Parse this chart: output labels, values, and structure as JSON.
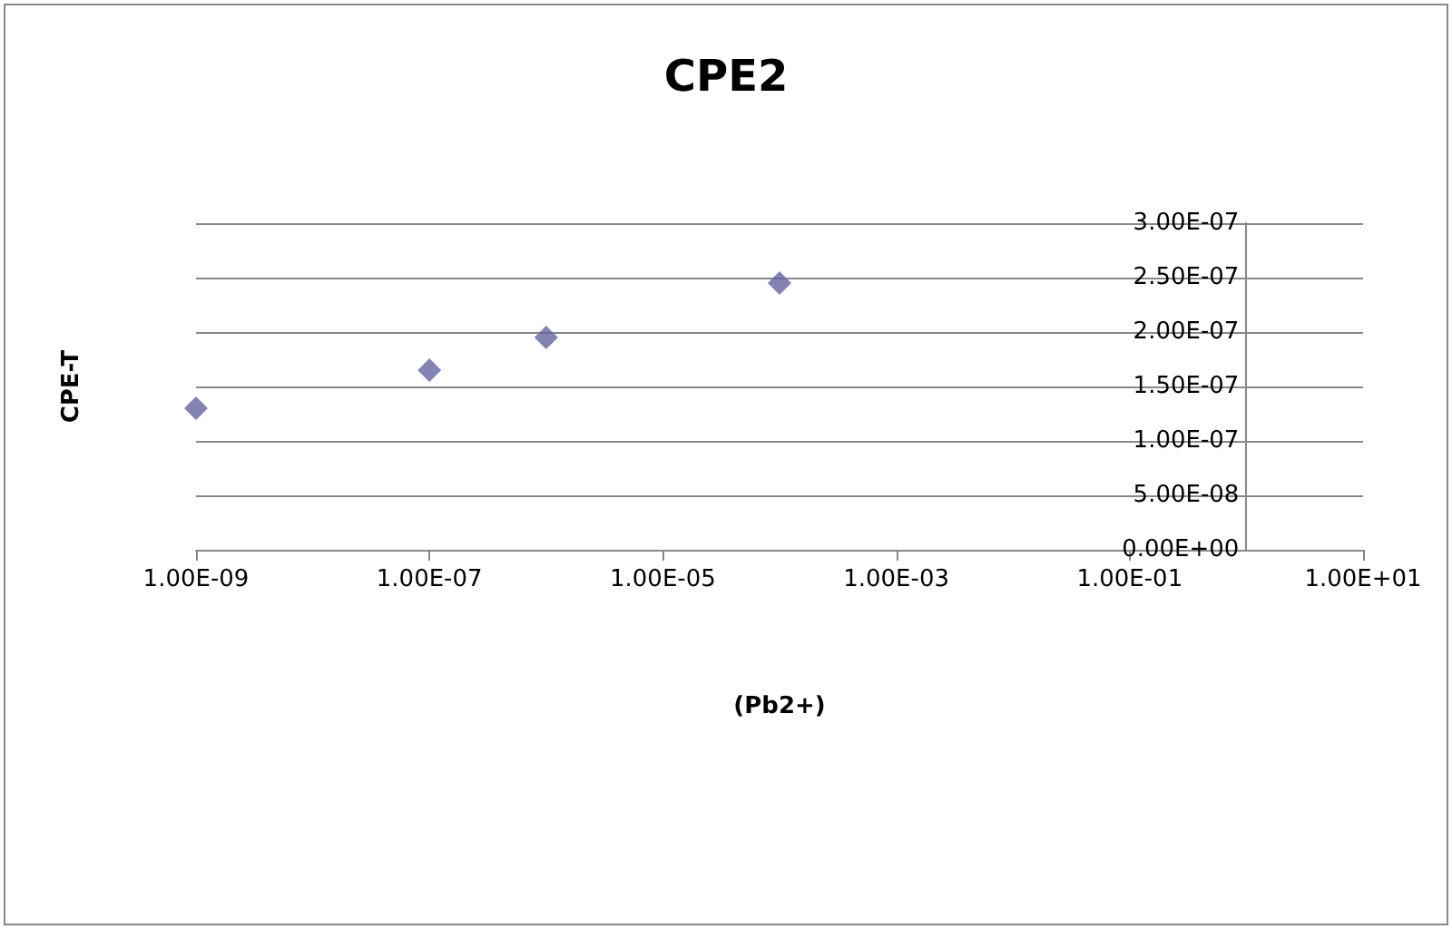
{
  "chart_data": {
    "type": "scatter",
    "title": "CPE2",
    "xlabel": "(Pb2+)",
    "ylabel": "CPE-T",
    "x": [
      1e-09,
      1e-07,
      1e-06,
      0.0001
    ],
    "series": [
      {
        "color": "#6464a0",
        "values": [
          1.3e-07,
          1.65e-07,
          1.95e-07,
          2.45e-07
        ]
      }
    ],
    "log": "x",
    "xlim": [
      1e-09,
      10
    ],
    "xticks": [
      {
        "value": 1e-09,
        "label": "1.00E-09"
      },
      {
        "value": 1e-07,
        "label": "1.00E-07"
      },
      {
        "value": 1e-05,
        "label": "1.00E-05"
      },
      {
        "value": 0.001,
        "label": "1.00E-03"
      },
      {
        "value": 0.1,
        "label": "1.00E-01"
      },
      {
        "value": 10,
        "label": "1.00E+01"
      }
    ],
    "ylim": [
      0,
      3e-07
    ],
    "yticks": [
      {
        "value": 0,
        "label": "0.00E+00"
      },
      {
        "value": 5e-08,
        "label": "5.00E-08"
      },
      {
        "value": 1e-07,
        "label": "1.00E-07"
      },
      {
        "value": 1.5e-07,
        "label": "1.50E-07"
      },
      {
        "value": 2e-07,
        "label": "2.00E-07"
      },
      {
        "value": 2.5e-07,
        "label": "2.50E-07"
      },
      {
        "value": 3e-07,
        "label": "3.00E-07"
      }
    ],
    "grid": "y",
    "marker": "diamond"
  }
}
